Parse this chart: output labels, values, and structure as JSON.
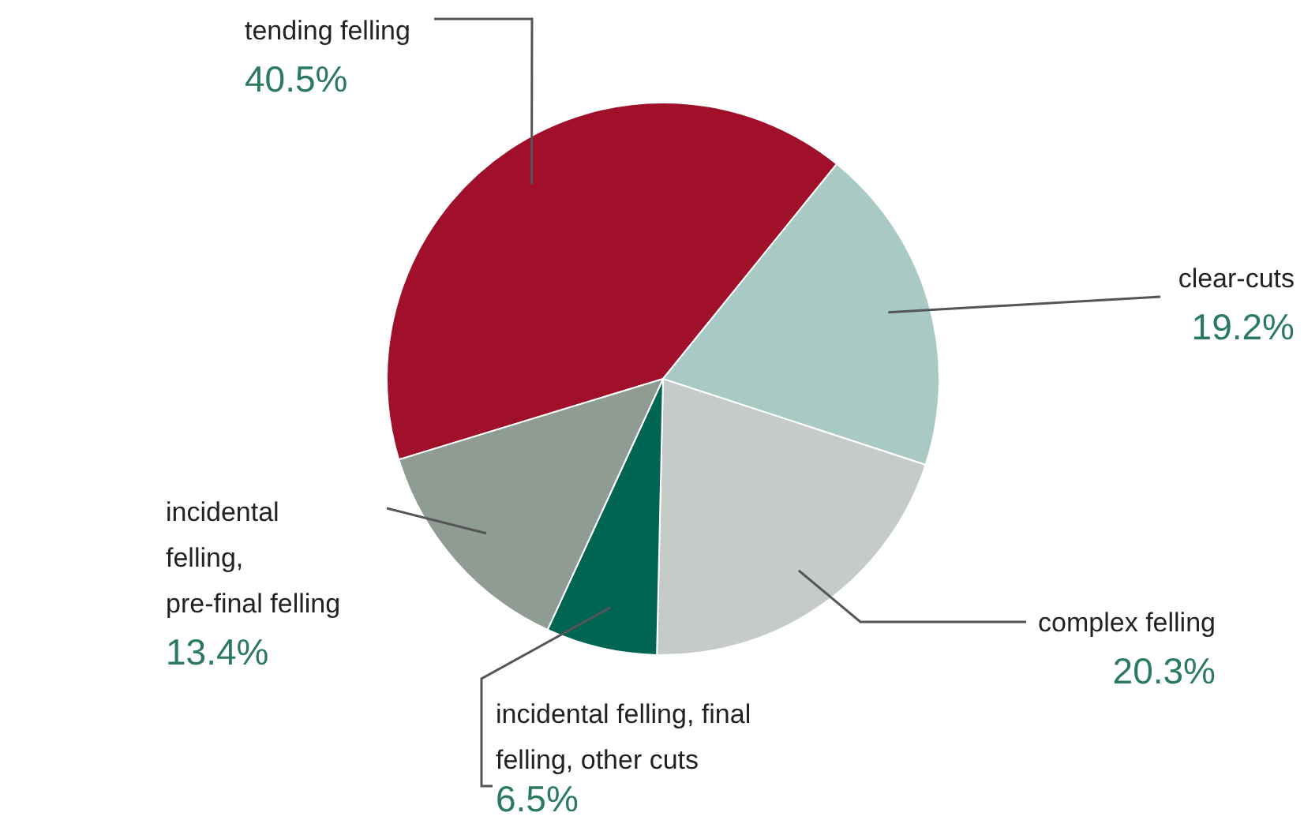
{
  "chart_data": {
    "type": "pie",
    "categories": [
      "tending felling",
      "clear-cuts",
      "complex felling",
      "incidental felling, final felling, other cuts",
      "incidental felling, pre-final felling"
    ],
    "values": [
      40.5,
      19.2,
      20.3,
      6.5,
      13.4
    ],
    "colors": [
      "#a0102a",
      "#a9c9c5",
      "#c5cbc6",
      "#006553",
      "#8f9c94"
    ],
    "value_labels": [
      "40.5%",
      "19.2%",
      "20.3%",
      "6.5%",
      "13.4%"
    ]
  }
}
